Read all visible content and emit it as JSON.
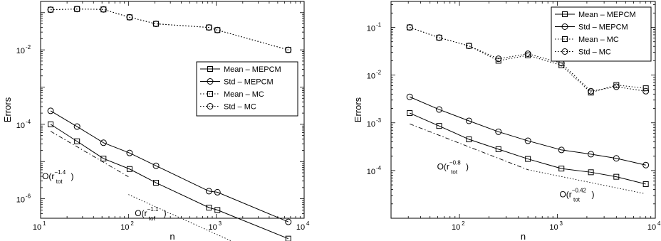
{
  "chart_data": [
    {
      "type": "line",
      "xlabel": "n",
      "ylabel": "Errors",
      "xscale": "log",
      "yscale": "log",
      "xlim": [
        10,
        10000
      ],
      "ylim": [
        3e-07,
        0.2
      ],
      "grid": false,
      "legend_position": "right",
      "xticks": [
        {
          "value": 10,
          "label": "10",
          "exp": "1"
        },
        {
          "value": 100,
          "label": "10",
          "exp": "2"
        },
        {
          "value": 1000,
          "label": "10",
          "exp": "3"
        },
        {
          "value": 10000,
          "label": "10",
          "exp": "4"
        }
      ],
      "yticks": [
        {
          "value": 1e-06,
          "label": "10",
          "exp": "-6"
        },
        {
          "value": 0.0001,
          "label": "10",
          "exp": "-4"
        },
        {
          "value": 0.01,
          "label": "10",
          "exp": "-2"
        }
      ],
      "series": [
        {
          "name": "Mean – MEPCM",
          "style": "solid",
          "marker": "square",
          "x": [
            13,
            26,
            52,
            103,
            206,
            825,
            1030,
            6600
          ],
          "y": [
            0.0001,
            3.5e-05,
            1.2e-05,
            6.3e-06,
            2.7e-06,
            5.8e-07,
            5e-07,
            8.5e-08
          ]
        },
        {
          "name": "Std – MEPCM",
          "style": "solid",
          "marker": "circle",
          "x": [
            13,
            26,
            52,
            103,
            206,
            825,
            1030,
            6600
          ],
          "y": [
            0.00023,
            8.7e-05,
            3.2e-05,
            1.7e-05,
            7.7e-06,
            1.6e-06,
            1.5e-06,
            2.4e-07
          ]
        },
        {
          "name": "Mean – MC",
          "style": "dotted",
          "marker": "square",
          "x": [
            13,
            26,
            52,
            103,
            206,
            825,
            1030,
            6600
          ],
          "y": [
            0.12,
            0.125,
            0.122,
            0.075,
            0.05,
            0.04,
            0.034,
            0.01
          ]
        },
        {
          "name": "Std – MC",
          "style": "dotted",
          "marker": "circle",
          "x": [
            13,
            26,
            52,
            103,
            206,
            825,
            1030,
            6600
          ],
          "y": [
            0.12,
            0.125,
            0.122,
            0.075,
            0.05,
            0.04,
            0.034,
            0.01
          ]
        }
      ],
      "reference_lines": [
        {
          "style": "dashdot",
          "x": [
            13,
            100
          ],
          "y": [
            6.5e-05,
            3.9e-06
          ]
        },
        {
          "style": "dotted",
          "x": [
            100,
            1600
          ],
          "y": [
            1.3e-06,
            6.8e-08
          ]
        }
      ],
      "annotations": [
        {
          "id": "o14",
          "text": "O(r",
          "sub": "tot",
          "sup": "−1.4",
          "close": ")",
          "at_x": 10.4,
          "at_y": 3.4e-06
        },
        {
          "id": "o11",
          "text": "O(r",
          "sub": "tot",
          "sup": "−1.1",
          "close": ")",
          "at_x": 118,
          "at_y": 3.4e-07
        }
      ]
    },
    {
      "type": "line",
      "xlabel": "n",
      "ylabel": "Errors",
      "xscale": "log",
      "yscale": "log",
      "xlim": [
        20,
        10000
      ],
      "ylim": [
        1e-05,
        0.35
      ],
      "grid": false,
      "legend_position": "top-right",
      "xticks": [
        {
          "value": 100,
          "label": "10",
          "exp": "2"
        },
        {
          "value": 1000,
          "label": "10",
          "exp": "3"
        },
        {
          "value": 10000,
          "label": "10",
          "exp": "4"
        }
      ],
      "yticks": [
        {
          "value": 0.0001,
          "label": "10",
          "exp": "-4"
        },
        {
          "value": 0.001,
          "label": "10",
          "exp": "-3"
        },
        {
          "value": 0.01,
          "label": "10",
          "exp": "-2"
        },
        {
          "value": 0.1,
          "label": "10",
          "exp": "-1"
        }
      ],
      "series": [
        {
          "name": "Mean – MEPCM",
          "style": "solid",
          "marker": "square",
          "x": [
            31,
            62,
            125,
            250,
            500,
            1100,
            2200,
            4000,
            8000
          ],
          "y": [
            0.0016,
            0.00086,
            0.00045,
            0.00028,
            0.000175,
            0.00011,
            9.2e-05,
            7.4e-05,
            5.2e-05
          ]
        },
        {
          "name": "Std – MEPCM",
          "style": "solid",
          "marker": "circle",
          "x": [
            31,
            62,
            125,
            250,
            500,
            1100,
            2200,
            4000,
            8000
          ],
          "y": [
            0.0035,
            0.0019,
            0.0011,
            0.00065,
            0.00042,
            0.00027,
            0.00022,
            0.00018,
            0.00013
          ]
        },
        {
          "name": "Mean – MC",
          "style": "dotted",
          "marker": "square",
          "x": [
            31,
            62,
            125,
            250,
            500,
            1100,
            2200,
            4000,
            8000
          ],
          "y": [
            0.1,
            0.061,
            0.041,
            0.02,
            0.026,
            0.016,
            0.0043,
            0.0062,
            0.0053
          ]
        },
        {
          "name": "Std – MC",
          "style": "dotted",
          "marker": "circle",
          "x": [
            31,
            62,
            125,
            250,
            500,
            1100,
            2200,
            4000,
            8000
          ],
          "y": [
            0.1,
            0.061,
            0.041,
            0.022,
            0.028,
            0.0178,
            0.0046,
            0.0057,
            0.0046
          ]
        }
      ],
      "reference_lines": [
        {
          "style": "dashdot",
          "x": [
            31,
            500
          ],
          "y": [
            0.00095,
            0.000104
          ]
        },
        {
          "style": "dotted",
          "x": [
            500,
            7800
          ],
          "y": [
            0.000104,
            3.28e-05
          ]
        }
      ],
      "annotations": [
        {
          "id": "o08",
          "text": "O(r",
          "sub": "tot",
          "sup": "−0.8",
          "close": ")",
          "at_x": 59,
          "at_y": 0.000105
        },
        {
          "id": "o042",
          "text": "O(r",
          "sub": "tot",
          "sup": "−0.42",
          "close": ")",
          "at_x": 1050,
          "at_y": 2.75e-05
        }
      ]
    }
  ]
}
